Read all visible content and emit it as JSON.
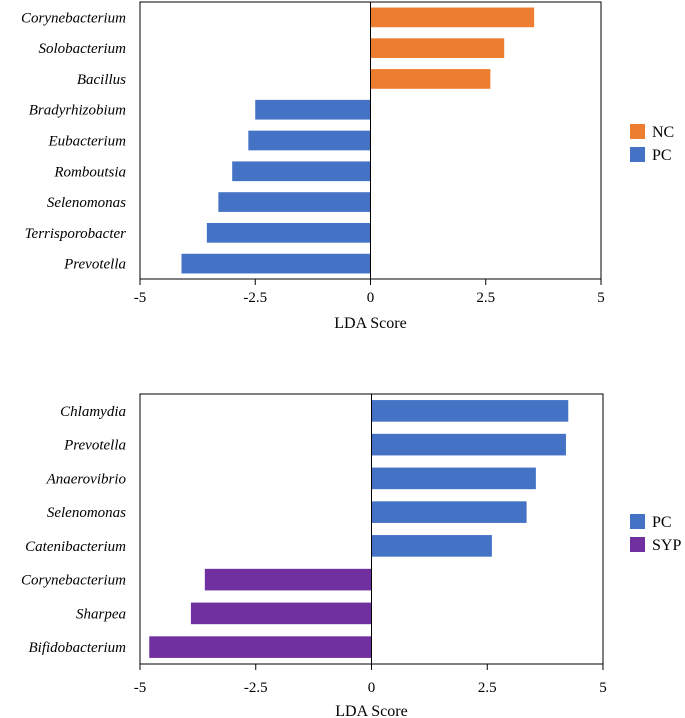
{
  "chart_data": [
    {
      "type": "bar",
      "orientation": "horizontal",
      "title": "",
      "xlabel": "LDA Score",
      "ylabel": "",
      "xlim": [
        -5,
        5
      ],
      "xticks": [
        "-5",
        "-2.5",
        "0",
        "2.5",
        "5"
      ],
      "xtick_values": [
        -5,
        -2.5,
        0,
        2.5,
        5
      ],
      "grid": false,
      "legend_position": "right",
      "legend": [
        {
          "name": "NC",
          "color": "#ED7D31"
        },
        {
          "name": "PC",
          "color": "#4472C4"
        }
      ],
      "categories": [
        "Corynebacterium",
        "Solobacterium",
        "Bacillus",
        "Bradyrhizobium",
        "Eubacterium",
        "Romboutsia",
        "Selenomonas",
        "Terrisporobacter",
        "Prevotella"
      ],
      "values": [
        3.55,
        2.9,
        2.6,
        -2.5,
        -2.65,
        -3.0,
        -3.3,
        -3.55,
        -4.1
      ],
      "groups": [
        "NC",
        "NC",
        "NC",
        "PC",
        "PC",
        "PC",
        "PC",
        "PC",
        "PC"
      ]
    },
    {
      "type": "bar",
      "orientation": "horizontal",
      "title": "",
      "xlabel": "LDA Score",
      "ylabel": "",
      "xlim": [
        -5,
        5
      ],
      "xticks": [
        "-5",
        "-2.5",
        "0",
        "2.5",
        "5"
      ],
      "xtick_values": [
        -5,
        -2.5,
        0,
        2.5,
        5
      ],
      "grid": false,
      "legend_position": "right",
      "legend": [
        {
          "name": "PC",
          "color": "#4472C4"
        },
        {
          "name": "SYP",
          "color": "#7030A0"
        }
      ],
      "categories": [
        "Chlamydia",
        "Prevotella",
        "Anaerovibrio",
        "Selenomonas",
        "Catenibacterium",
        "Corynebacterium",
        "Sharpea",
        "Bifidobacterium"
      ],
      "values": [
        4.25,
        4.2,
        3.55,
        3.35,
        2.6,
        -3.6,
        -3.9,
        -4.8
      ],
      "groups": [
        "PC",
        "PC",
        "PC",
        "PC",
        "PC",
        "SYP",
        "SYP",
        "SYP"
      ]
    }
  ]
}
